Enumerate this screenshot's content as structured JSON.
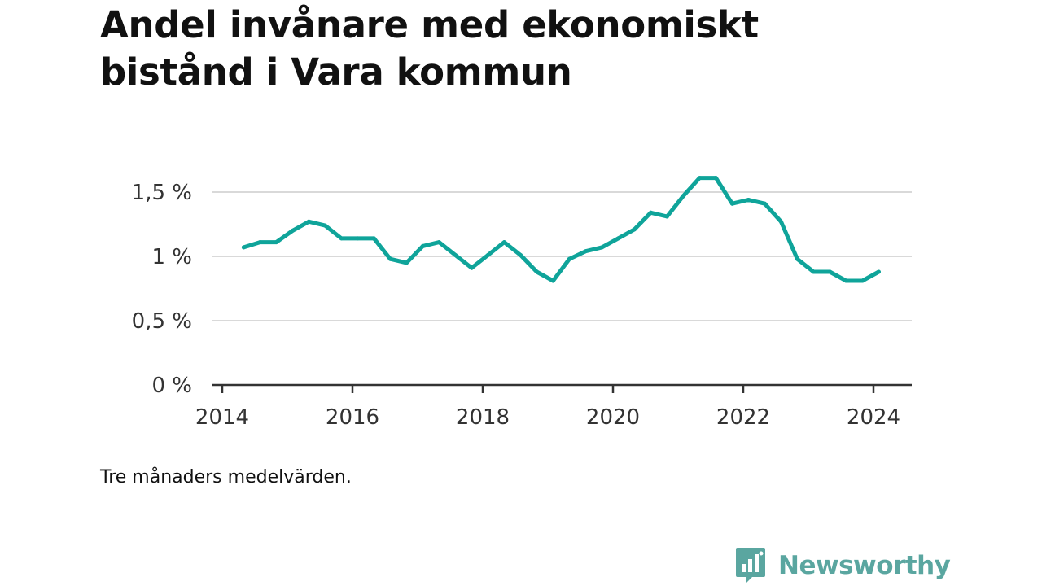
{
  "title": "Andel invånare med ekonomiskt bistånd i Vara kommun",
  "note": "Tre månaders medelvärden.",
  "brand": {
    "name": "Newsworthy",
    "icon": "bar-chart-speech-bubble-icon",
    "color": "#5aa6a0"
  },
  "colors": {
    "line": "#0fa49a",
    "grid": "#d9d9d9",
    "axis": "#333333"
  },
  "chart_data": {
    "type": "line",
    "title": "Andel invånare med ekonomiskt bistånd i Vara kommun",
    "xlabel": "",
    "ylabel": "",
    "x_ticks": [
      "2014",
      "2016",
      "2018",
      "2020",
      "2022",
      "2024"
    ],
    "y_ticks": [
      "0 %",
      "0,5 %",
      "1 %",
      "1,5 %"
    ],
    "y_tick_values": [
      0,
      0.5,
      1.0,
      1.5
    ],
    "xlim": [
      2014.0,
      2024.6
    ],
    "ylim": [
      0,
      1.5
    ],
    "grid": true,
    "legend": "none",
    "series": [
      {
        "x": [
          2014.33,
          2014.58,
          2014.83,
          2015.08,
          2015.33,
          2015.58,
          2015.83,
          2016.08,
          2016.33,
          2016.58,
          2016.83,
          2017.08,
          2017.33,
          2017.58,
          2017.83,
          2018.08,
          2018.33,
          2018.58,
          2018.83,
          2019.08,
          2019.33,
          2019.58,
          2019.83,
          2020.08,
          2020.33,
          2020.58,
          2020.83,
          2021.08,
          2021.33,
          2021.58,
          2021.83,
          2022.08,
          2022.33,
          2022.58,
          2022.83,
          2023.08,
          2023.33,
          2023.58,
          2023.83,
          2024.08
        ],
        "values": [
          1.07,
          1.11,
          1.11,
          1.2,
          1.27,
          1.24,
          1.14,
          1.14,
          1.14,
          0.98,
          0.95,
          1.08,
          1.11,
          1.01,
          0.91,
          1.01,
          1.11,
          1.01,
          0.88,
          0.81,
          0.98,
          1.04,
          1.07,
          1.14,
          1.21,
          1.34,
          1.31,
          1.47,
          1.61,
          1.61,
          1.41,
          1.44,
          1.41,
          1.27,
          0.98,
          0.88,
          0.88,
          0.81,
          0.81,
          0.88
        ]
      }
    ]
  }
}
